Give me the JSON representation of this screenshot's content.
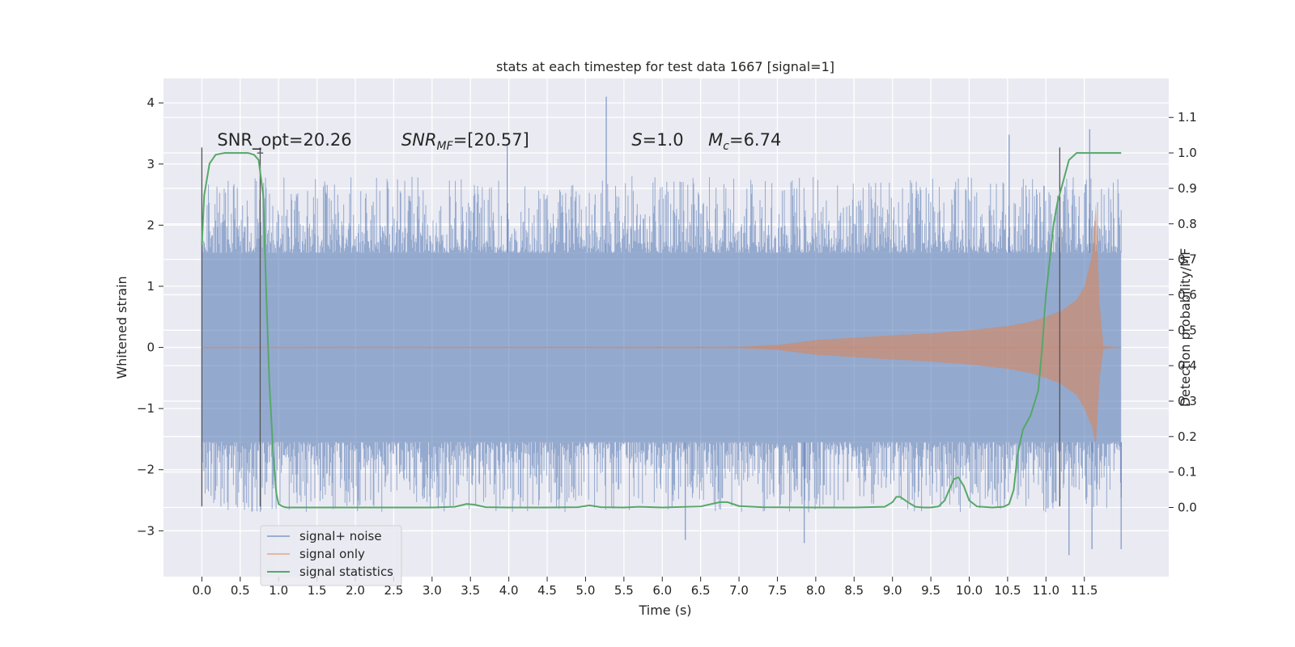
{
  "chart_data": {
    "type": "line",
    "title": "stats at each timestep for test data 1667 [signal=1]",
    "xlabel": "Time (s)",
    "ylabel": "Whitened strain",
    "y2label": "Detection probability/MF",
    "xlim": [
      -0.5,
      12.6
    ],
    "ylim": [
      -3.75,
      4.4
    ],
    "y2lim": [
      -0.195,
      1.21
    ],
    "grid": true,
    "legend_position": "lower-left",
    "xticks": [
      "0.0",
      "0.5",
      "1.0",
      "1.5",
      "2.0",
      "2.5",
      "3.0",
      "3.5",
      "4.0",
      "4.5",
      "5.0",
      "5.5",
      "6.0",
      "6.5",
      "7.0",
      "7.5",
      "8.0",
      "8.5",
      "9.0",
      "9.5",
      "10.0",
      "10.5",
      "11.0",
      "11.5"
    ],
    "yticks": [
      "−3",
      "−2",
      "−1",
      "0",
      "1",
      "2",
      "3",
      "4"
    ],
    "y2ticks": [
      "0.0",
      "0.1",
      "0.2",
      "0.3",
      "0.4",
      "0.5",
      "0.6",
      "0.7",
      "0.8",
      "0.9",
      "1.0",
      "1.1"
    ],
    "annotations": [
      {
        "text": "SNR_opt=20.26",
        "x": 0.2,
        "y": 3.3
      },
      {
        "text": "SNR",
        "sub": "MF",
        "suffix": "=[20.57]",
        "x": 2.6,
        "y": 3.3
      },
      {
        "text": "S",
        "suffix": "=1.0",
        "x": 5.6,
        "y": 3.3
      },
      {
        "text": "M",
        "sub": "c",
        "suffix": "=6.74",
        "x": 6.6,
        "y": 3.3
      }
    ],
    "vlines": [
      {
        "x": 0.0,
        "ymin": -2.6,
        "ymax": 3.27
      },
      {
        "x": 0.76,
        "ymin": -2.6,
        "ymax": 3.27
      },
      {
        "x": 11.18,
        "ymin": -2.6,
        "ymax": 3.27
      },
      {
        "x": 0.76,
        "ymin": 3.18,
        "ymax": 3.27
      }
    ],
    "noise_band": {
      "x_range": [
        0.0,
        11.98
      ],
      "core_amplitude": 1.55,
      "spike_max": 4.1,
      "spike_min": -3.4,
      "notable_spikes": [
        {
          "x": 5.27,
          "y": 4.1
        },
        {
          "x": 11.57,
          "y": 3.57
        },
        {
          "x": 10.52,
          "y": 3.48
        },
        {
          "x": 3.98,
          "y": 3.3
        },
        {
          "x": 11.3,
          "y": -3.4
        },
        {
          "x": 11.6,
          "y": -3.3
        },
        {
          "x": 6.3,
          "y": -3.15
        },
        {
          "x": 7.85,
          "y": -3.2
        },
        {
          "x": 11.98,
          "y": -3.3
        }
      ]
    },
    "signal_envelope": {
      "x": [
        0.0,
        7.0,
        7.5,
        8.0,
        8.5,
        9.0,
        9.5,
        10.0,
        10.5,
        10.8,
        11.0,
        11.2,
        11.4,
        11.5,
        11.6,
        11.65,
        11.7,
        11.75,
        11.98
      ],
      "upper": [
        0.0,
        0.01,
        0.04,
        0.12,
        0.16,
        0.2,
        0.23,
        0.28,
        0.35,
        0.42,
        0.5,
        0.6,
        0.78,
        1.0,
        1.5,
        2.35,
        0.7,
        0.02,
        0.0
      ],
      "lower": [
        0.0,
        -0.01,
        -0.04,
        -0.12,
        -0.16,
        -0.2,
        -0.23,
        -0.28,
        -0.35,
        -0.42,
        -0.5,
        -0.6,
        -0.78,
        -1.0,
        -1.3,
        -1.6,
        -0.5,
        -0.02,
        0.0
      ]
    },
    "series": [
      {
        "name": "signal+ noise",
        "color": "#4c72b0",
        "opacity": 0.5
      },
      {
        "name": "signal only",
        "color": "#dd8452",
        "opacity": 0.5
      },
      {
        "name": "signal statistics",
        "color": "#55a868",
        "axis": "right",
        "x": [
          0.0,
          0.03,
          0.1,
          0.18,
          0.3,
          0.45,
          0.6,
          0.68,
          0.74,
          0.8,
          0.84,
          0.88,
          0.93,
          0.97,
          1.0,
          1.05,
          1.1,
          1.2,
          1.5,
          2.0,
          2.5,
          3.0,
          3.3,
          3.45,
          3.55,
          3.7,
          4.0,
          4.5,
          4.9,
          5.05,
          5.2,
          5.5,
          5.7,
          6.0,
          6.5,
          6.75,
          6.85,
          7.0,
          7.3,
          8.0,
          8.5,
          8.9,
          9.0,
          9.05,
          9.1,
          9.2,
          9.3,
          9.4,
          9.5,
          9.6,
          9.68,
          9.74,
          9.8,
          9.86,
          9.93,
          10.0,
          10.1,
          10.3,
          10.45,
          10.52,
          10.58,
          10.63,
          10.7,
          10.8,
          10.9,
          10.95,
          11.0,
          11.05,
          11.1,
          11.15,
          11.2,
          11.25,
          11.3,
          11.4,
          11.5,
          11.6,
          11.7,
          11.98
        ],
        "y": [
          0.74,
          0.88,
          0.97,
          0.995,
          1.0,
          1.0,
          1.0,
          0.995,
          0.98,
          0.88,
          0.6,
          0.35,
          0.15,
          0.04,
          0.01,
          0.003,
          0.0,
          0.0,
          0.0,
          0.0,
          0.0,
          0.0,
          0.002,
          0.01,
          0.008,
          0.001,
          0.0,
          0.0,
          0.001,
          0.006,
          0.001,
          0.0,
          0.002,
          0.0,
          0.003,
          0.015,
          0.015,
          0.004,
          0.001,
          0.0,
          0.0,
          0.002,
          0.015,
          0.03,
          0.03,
          0.015,
          0.002,
          0.0,
          0.0,
          0.003,
          0.02,
          0.05,
          0.08,
          0.085,
          0.06,
          0.02,
          0.003,
          0.0,
          0.002,
          0.01,
          0.05,
          0.15,
          0.22,
          0.26,
          0.33,
          0.45,
          0.6,
          0.7,
          0.8,
          0.86,
          0.9,
          0.94,
          0.98,
          1.0,
          1.0,
          1.0,
          1.0,
          1.0
        ]
      }
    ]
  }
}
